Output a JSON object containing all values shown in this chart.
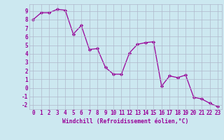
{
  "x": [
    0,
    1,
    2,
    3,
    4,
    5,
    6,
    7,
    8,
    9,
    10,
    11,
    12,
    13,
    14,
    15,
    16,
    17,
    18,
    19,
    20,
    21,
    22,
    23
  ],
  "y": [
    8.0,
    8.8,
    8.8,
    9.2,
    9.1,
    6.3,
    7.3,
    4.5,
    4.6,
    2.4,
    1.6,
    1.6,
    4.1,
    5.1,
    5.3,
    5.4,
    0.2,
    1.4,
    1.2,
    1.5,
    -1.1,
    -1.3,
    -1.8,
    -2.2
  ],
  "line_color": "#990099",
  "marker_color": "#990099",
  "bg_color": "#cce8f0",
  "grid_color": "#b0b8cc",
  "xlabel": "Windchill (Refroidissement éolien,°C)",
  "ylim": [
    -2.5,
    9.8
  ],
  "xlim": [
    -0.5,
    23.5
  ],
  "yticks": [
    -2,
    -1,
    0,
    1,
    2,
    3,
    4,
    5,
    6,
    7,
    8,
    9
  ],
  "xticks": [
    0,
    1,
    2,
    3,
    4,
    5,
    6,
    7,
    8,
    9,
    10,
    11,
    12,
    13,
    14,
    15,
    16,
    17,
    18,
    19,
    20,
    21,
    22,
    23
  ],
  "tick_fontsize": 5.5,
  "xlabel_fontsize": 5.8,
  "linewidth": 0.9,
  "markersize": 2.2
}
